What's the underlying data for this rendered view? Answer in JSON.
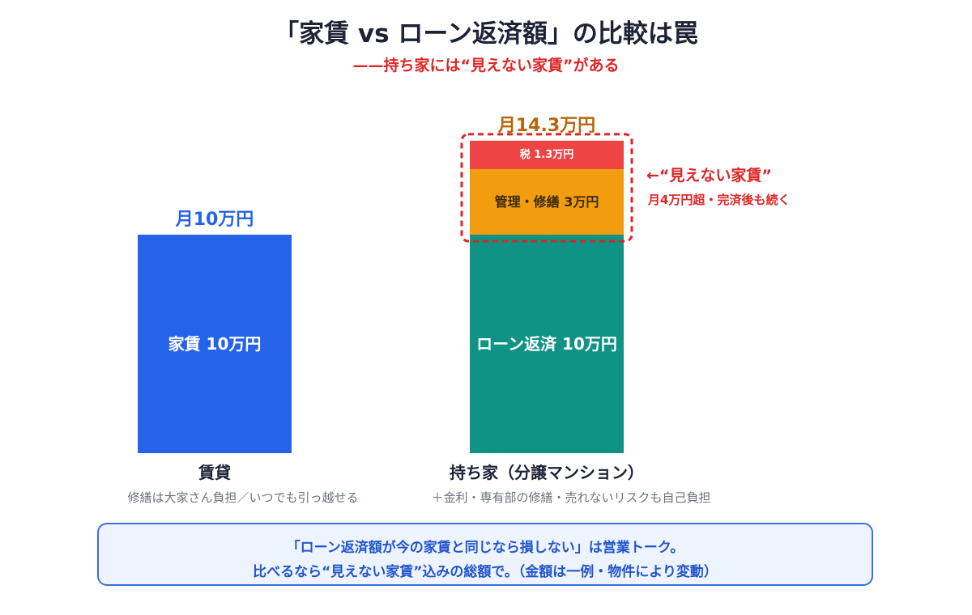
{
  "title": "「家賃 vs ローン返済額」の比較は罠",
  "subtitle": "——持ち家には“見えない家賃”がある",
  "annotation": {
    "main": "←“見えない家賃”",
    "sub": "月4万円超・完済後も続く"
  },
  "categories": [
    {
      "label": "賃貸",
      "note": "修繕は大家さん負担／いつでも引っ越せる"
    },
    {
      "label": "持ち家（分譲マンション）",
      "note": "＋金利・専有部の修繕・売れないリスクも自己負担"
    }
  ],
  "note_box": {
    "line1": "「ローン返済額が今の家賃と同じなら損しない」は営業トーク。",
    "line2": "比べるなら“見えない家賃”込みの総額で。（金額は一例・物件により変動）"
  },
  "colors": {
    "rent": "#2563eb",
    "loan": "#0f9384",
    "maintenance": "#f29c10",
    "tax": "#ef4444",
    "highlight": "#dc2626",
    "total_rent": "#2563eb",
    "total_owner": "#b7660b"
  },
  "chart_data": {
    "type": "bar",
    "stacked": true,
    "unit": "万円/月",
    "ylim": [
      0,
      14.3
    ],
    "bars": [
      {
        "category": "賃貸",
        "total_label": "月10万円",
        "total": 10,
        "segments": [
          {
            "name": "家賃",
            "value": 10,
            "label": "家賃 10万円",
            "color": "#2563eb"
          }
        ]
      },
      {
        "category": "持ち家（分譲マンション）",
        "total_label": "月14.3万円",
        "total": 14.3,
        "segments": [
          {
            "name": "ローン返済",
            "value": 10,
            "label": "ローン返済 10万円",
            "color": "#0f9384"
          },
          {
            "name": "管理・修繕",
            "value": 3,
            "label": "管理・修繕 3万円",
            "color": "#f29c10"
          },
          {
            "name": "税",
            "value": 1.3,
            "label": "税 1.3万円",
            "color": "#ef4444"
          }
        ]
      }
    ]
  }
}
